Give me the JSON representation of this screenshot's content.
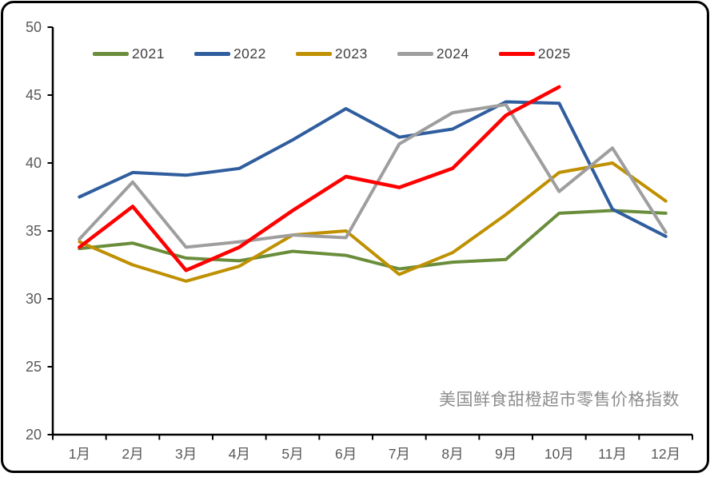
{
  "chart_data": {
    "type": "line",
    "annotation": "美国鲜食甜橙超市零售价格指数",
    "categories": [
      "1月",
      "2月",
      "3月",
      "4月",
      "5月",
      "6月",
      "7月",
      "8月",
      "9月",
      "10月",
      "11月",
      "12月"
    ],
    "series": [
      {
        "name": "2021",
        "color": "#6a8d3b",
        "values": [
          33.7,
          34.1,
          33.0,
          32.8,
          33.5,
          33.2,
          32.2,
          32.7,
          32.9,
          36.3,
          36.5,
          36.3
        ]
      },
      {
        "name": "2022",
        "color": "#2f5d9e",
        "values": [
          37.5,
          39.3,
          39.1,
          39.6,
          41.7,
          44.0,
          41.9,
          42.5,
          44.5,
          44.4,
          36.6,
          34.6
        ]
      },
      {
        "name": "2023",
        "color": "#bf9000",
        "values": [
          34.2,
          32.5,
          31.3,
          32.4,
          34.7,
          35.0,
          31.8,
          33.4,
          36.2,
          39.3,
          40.0,
          37.2
        ]
      },
      {
        "name": "2024",
        "color": "#9e9e9e",
        "values": [
          34.4,
          38.6,
          33.8,
          34.2,
          34.7,
          34.5,
          41.4,
          43.7,
          44.3,
          37.9,
          41.1,
          34.9
        ]
      },
      {
        "name": "2025",
        "color": "#ff0000",
        "values": [
          33.8,
          36.8,
          32.1,
          33.8,
          36.5,
          39.0,
          38.2,
          39.6,
          43.5,
          45.6,
          null,
          null
        ]
      }
    ],
    "ylim": [
      20,
      50
    ],
    "yticks": [
      20,
      25,
      30,
      35,
      40,
      45,
      50
    ],
    "grid": false,
    "legend_position": "top",
    "axis_color": "#000000",
    "tick_label_color": "#595959"
  }
}
